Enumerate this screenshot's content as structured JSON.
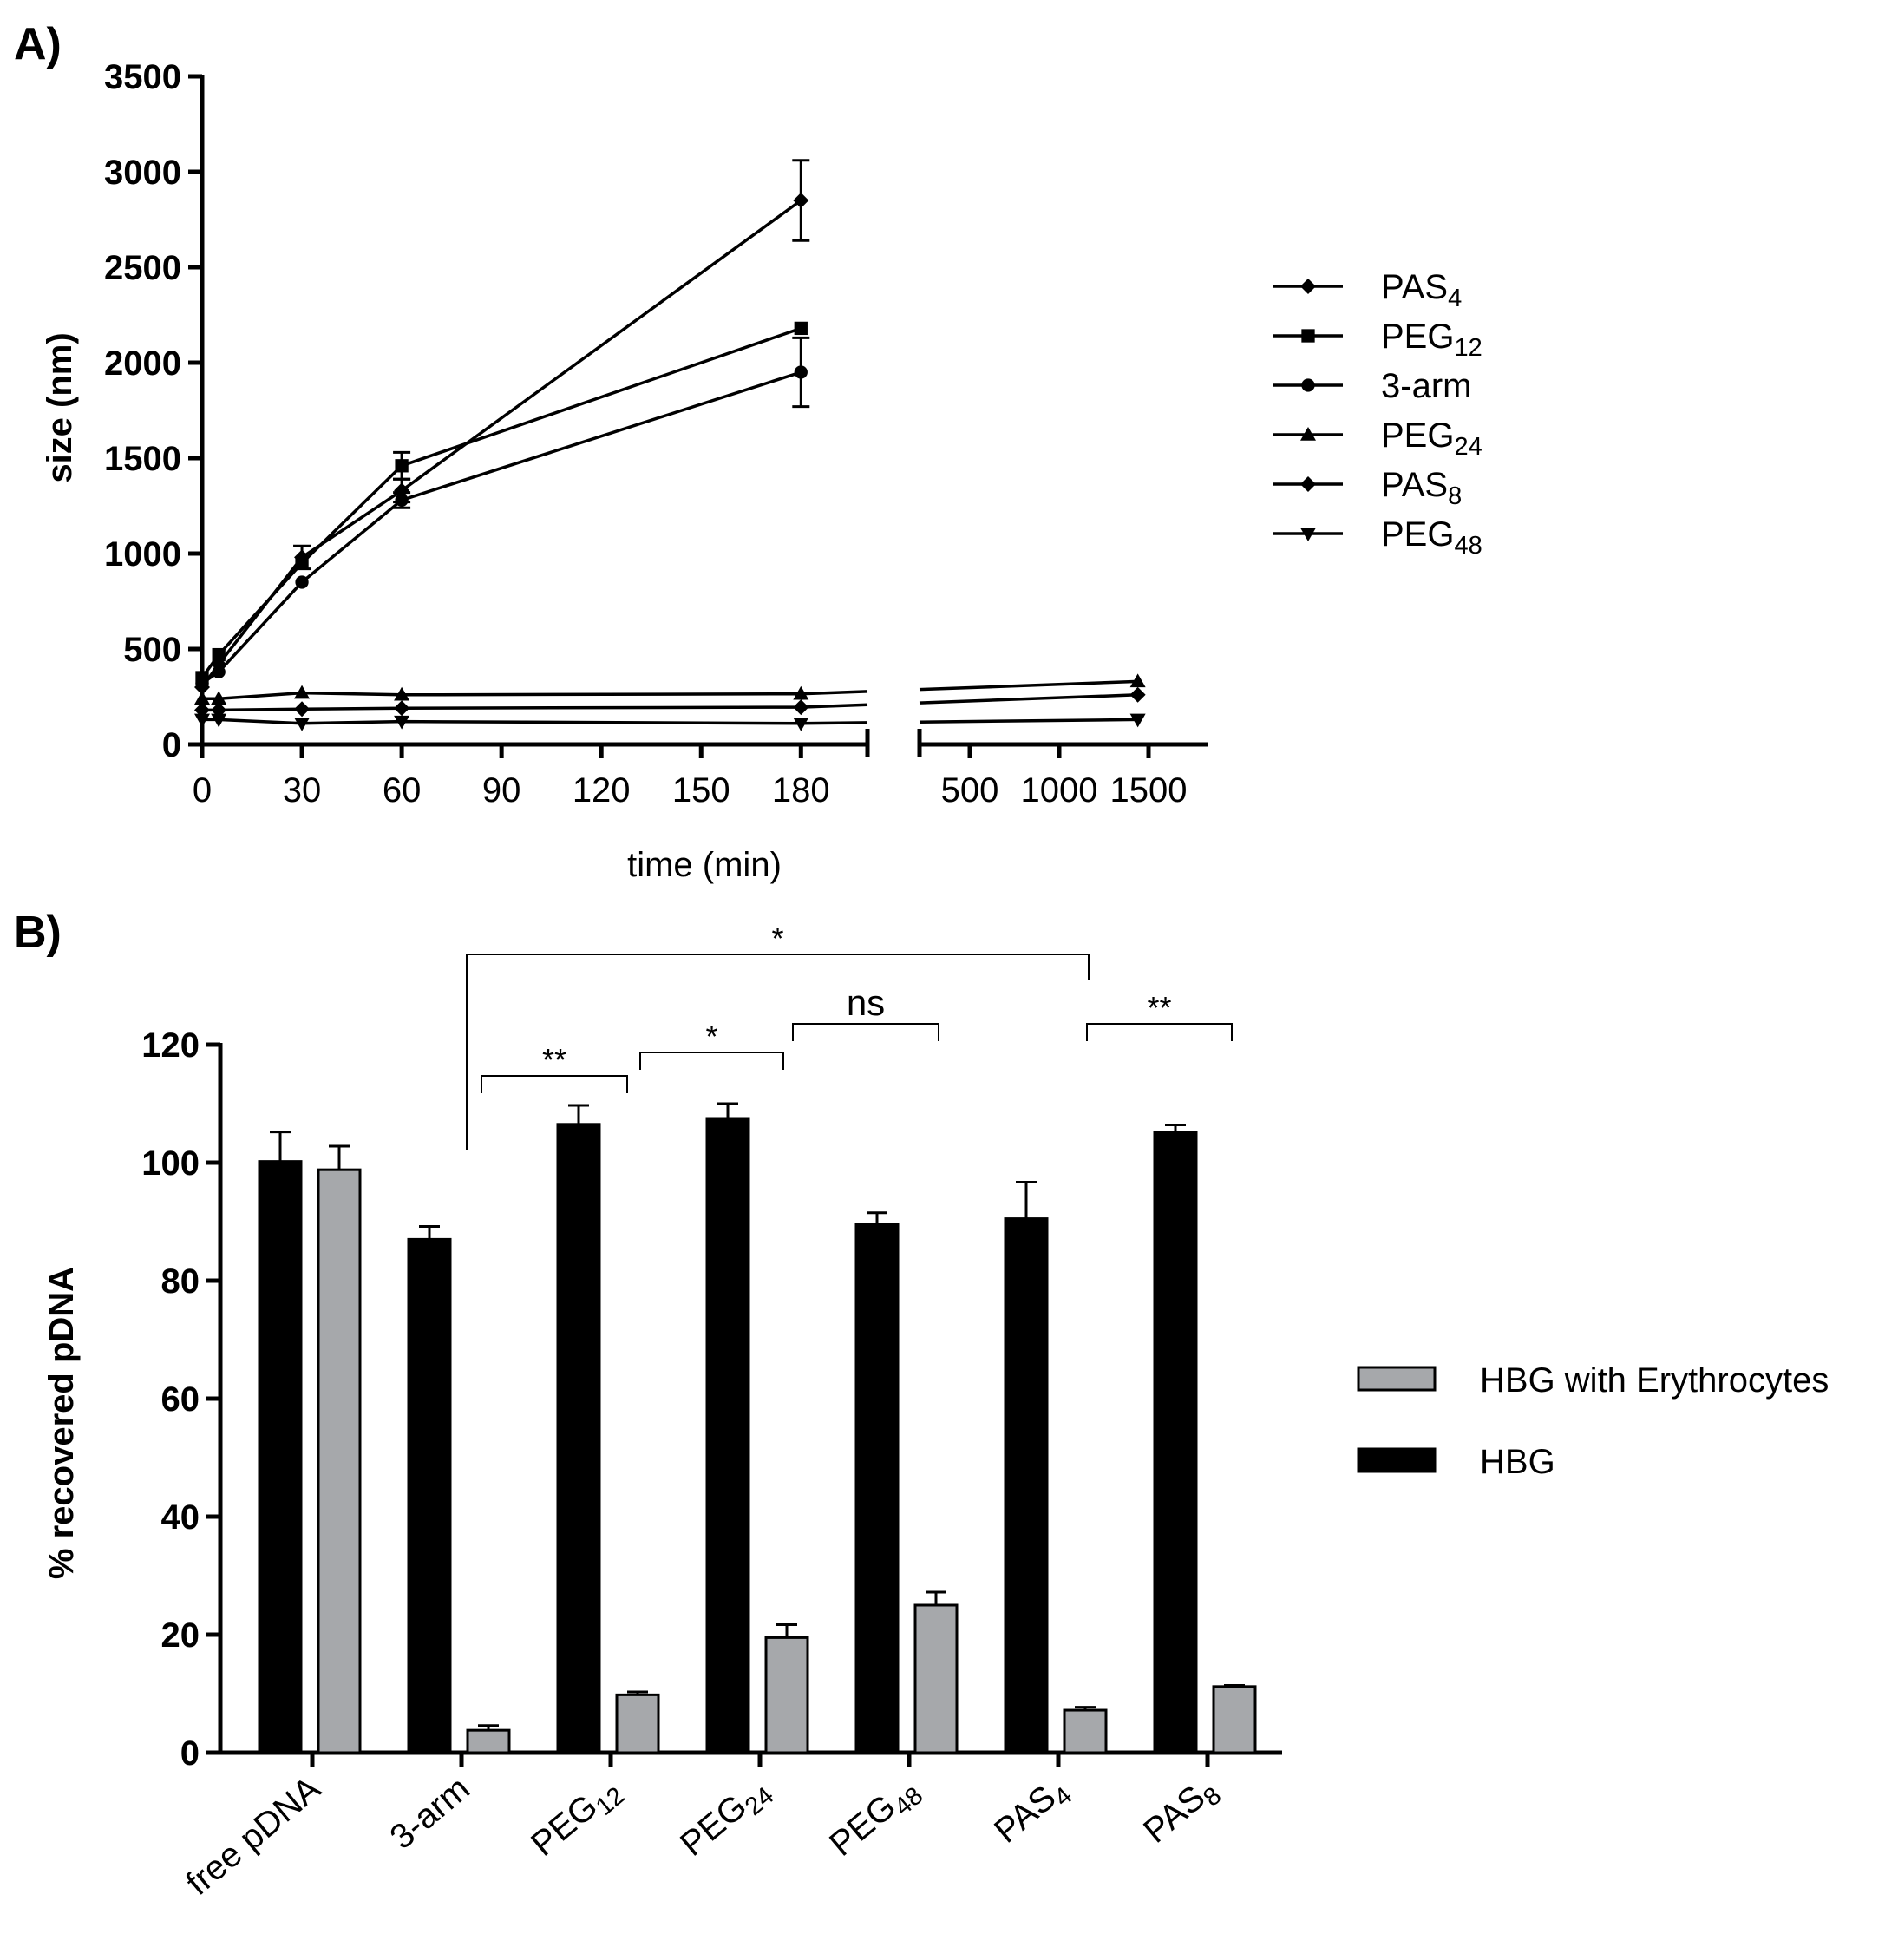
{
  "chart_data": [
    {
      "panel_label": "A)",
      "type": "line",
      "xlabel": "time (min)",
      "ylabel": "size  (nm)",
      "ylim": [
        0,
        3500
      ],
      "y_ticks": [
        "0",
        "500",
        "1000",
        "1500",
        "2000",
        "2500",
        "3000",
        "3500"
      ],
      "x_ticks_left": [
        "0",
        "30",
        "60",
        "90",
        "120",
        "150",
        "180"
      ],
      "x_ticks_right": [
        "500",
        "1000",
        "1500"
      ],
      "series": [
        {
          "name": "PAS",
          "sub": "4",
          "marker": "diamond",
          "x": [
            0,
            5,
            30,
            60,
            180
          ],
          "y": [
            300,
            420,
            980,
            1330,
            2850
          ],
          "err": [
            0,
            0,
            60,
            60,
            210
          ]
        },
        {
          "name": "PEG",
          "sub": "12",
          "marker": "square",
          "x": [
            0,
            5,
            30,
            60,
            180
          ],
          "y": [
            350,
            470,
            950,
            1460,
            2180
          ],
          "err": [
            0,
            0,
            0,
            70,
            0
          ]
        },
        {
          "name": "3-arm",
          "sub": "",
          "marker": "circle",
          "x": [
            0,
            5,
            30,
            60,
            180
          ],
          "y": [
            320,
            380,
            850,
            1280,
            1950
          ],
          "err": [
            0,
            0,
            0,
            40,
            180
          ]
        },
        {
          "name": "PEG",
          "sub": "24",
          "marker": "triangle-up",
          "x": [
            0,
            5,
            30,
            60,
            180,
            1440
          ],
          "y": [
            240,
            240,
            270,
            260,
            265,
            330
          ],
          "err": [
            0,
            0,
            0,
            0,
            0,
            0
          ]
        },
        {
          "name": "PAS",
          "sub": "8",
          "marker": "diamond",
          "x": [
            0,
            5,
            30,
            60,
            180,
            1440
          ],
          "y": [
            180,
            180,
            185,
            190,
            195,
            260
          ],
          "err": [
            0,
            0,
            0,
            0,
            0,
            0
          ]
        },
        {
          "name": "PEG",
          "sub": "48",
          "marker": "triangle-down",
          "x": [
            0,
            5,
            30,
            60,
            180,
            1440
          ],
          "y": [
            130,
            130,
            110,
            120,
            110,
            130
          ],
          "err": [
            0,
            0,
            0,
            0,
            0,
            0
          ]
        }
      ]
    },
    {
      "panel_label": "B)",
      "type": "bar",
      "ylabel": "% recovered pDNA",
      "ylim": [
        0,
        120
      ],
      "y_ticks": [
        "0",
        "20",
        "40",
        "60",
        "80",
        "100",
        "120"
      ],
      "categories": [
        {
          "name": "free pDNA",
          "sub": ""
        },
        {
          "name": "3-arm",
          "sub": ""
        },
        {
          "name": "PEG",
          "sub": "12"
        },
        {
          "name": "PEG",
          "sub": "24"
        },
        {
          "name": "PEG",
          "sub": "48"
        },
        {
          "name": "PAS",
          "sub": "4"
        },
        {
          "name": "PAS",
          "sub": "8"
        }
      ],
      "series": [
        {
          "name": "HBG",
          "color": "#000000",
          "values": [
            100.2,
            87.0,
            106.5,
            107.5,
            89.5,
            90.5,
            105.2
          ],
          "err": [
            5.0,
            2.2,
            3.2,
            2.5,
            2.0,
            6.2,
            1.2
          ]
        },
        {
          "name": "HBG with Erythrocytes",
          "color": "#a6a8ab",
          "values": [
            98.8,
            3.8,
            9.8,
            19.5,
            25.0,
            7.2,
            11.2
          ],
          "err": [
            4.0,
            0.8,
            0.5,
            2.2,
            2.2,
            0.5,
            0.2
          ]
        }
      ],
      "significance": [
        {
          "from": "3-arm",
          "to": "PAS4",
          "label": "*"
        },
        {
          "from": "3-arm",
          "to": "PEG12",
          "label": "**"
        },
        {
          "from": "PEG12",
          "to": "PEG24",
          "label": "*"
        },
        {
          "from": "PEG24",
          "to": "PEG48",
          "label": "ns"
        },
        {
          "from": "PAS4",
          "to": "PAS8",
          "label": "**"
        }
      ],
      "legend": [
        {
          "name": "HBG with Erythrocytes",
          "color": "#a6a8ab"
        },
        {
          "name": "HBG",
          "color": "#000000"
        }
      ]
    }
  ]
}
